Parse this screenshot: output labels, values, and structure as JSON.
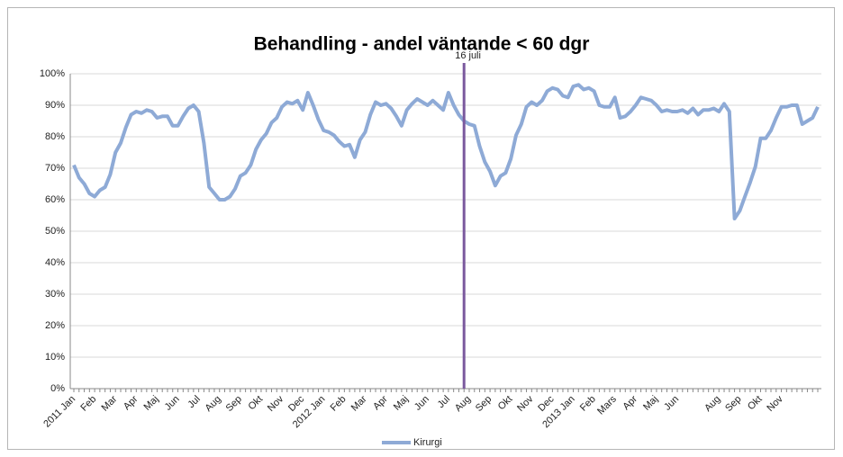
{
  "chart_data": {
    "type": "line",
    "title": "Behandling - andel väntande < 60 dgr",
    "categories": [
      "2011 Jan",
      null,
      null,
      null,
      "Feb",
      null,
      null,
      null,
      "Mar",
      null,
      null,
      null,
      "Apr",
      null,
      null,
      null,
      "Maj",
      null,
      null,
      null,
      "Jun",
      null,
      null,
      null,
      "Jul",
      null,
      null,
      null,
      "Aug",
      null,
      null,
      null,
      "Sep",
      null,
      null,
      null,
      "Okt",
      null,
      null,
      null,
      "Nov",
      null,
      null,
      null,
      "Dec",
      null,
      null,
      null,
      "2012 Jan",
      null,
      null,
      null,
      "Feb",
      null,
      null,
      null,
      "Mar",
      null,
      null,
      null,
      "Apr",
      null,
      null,
      null,
      "Maj",
      null,
      null,
      null,
      "Jun",
      null,
      null,
      null,
      "Jul",
      null,
      null,
      null,
      "Aug",
      null,
      null,
      null,
      "Sep",
      null,
      null,
      null,
      "Okt",
      null,
      null,
      null,
      "Nov",
      null,
      null,
      null,
      "Dec",
      null,
      null,
      null,
      "2013 Jan",
      null,
      null,
      null,
      "Feb",
      null,
      null,
      null,
      "Mars",
      null,
      null,
      null,
      "Apr",
      null,
      null,
      null,
      "Maj",
      null,
      null,
      null,
      "Jun",
      null,
      null,
      null,
      null,
      null,
      null,
      null,
      "Aug",
      null,
      null,
      null,
      "Sep",
      null,
      null,
      null,
      "Okt",
      null,
      null,
      null,
      "Nov",
      null,
      null,
      null,
      null,
      null,
      null,
      null
    ],
    "series": [
      {
        "name": "Kirurgi",
        "color": "#8eaad6",
        "values": [
          71,
          67,
          65,
          62,
          61,
          63,
          64,
          68,
          75,
          78,
          83,
          87,
          88,
          87.5,
          88.5,
          88,
          86,
          86.5,
          86.5,
          83.5,
          83.5,
          86.5,
          89,
          90,
          88,
          78,
          64,
          62,
          60,
          60,
          61,
          63.5,
          67.5,
          68.5,
          71,
          76,
          79,
          81,
          84.5,
          86,
          89.5,
          91,
          90.5,
          91.5,
          88.5,
          94,
          90,
          85.5,
          82,
          81.5,
          80.5,
          78.5,
          77,
          77.5,
          73.5,
          79,
          81.5,
          87,
          91,
          90,
          90.5,
          89,
          86.5,
          83.5,
          88.5,
          90.5,
          92,
          91,
          90,
          91.5,
          90,
          88.5,
          94,
          90,
          87,
          85,
          84,
          83.5,
          77,
          72,
          69,
          64.5,
          67.5,
          68.5,
          73,
          80.5,
          84,
          89.5,
          91,
          90,
          91.5,
          94.5,
          95.5,
          95,
          93,
          92.5,
          96,
          96.5,
          95,
          95.5,
          94.5,
          90,
          89.5,
          89.5,
          92.5,
          86,
          86.5,
          88,
          90,
          92.5,
          92,
          91.5,
          90,
          88,
          88.5,
          88,
          88,
          88.5,
          87.5,
          89,
          87,
          88.5,
          88.5,
          89,
          88,
          90.5,
          88,
          54,
          56.5,
          61,
          65.5,
          70.5,
          79.5,
          79.5,
          82,
          86,
          89.5,
          89.5,
          90,
          90,
          84,
          85,
          86,
          89.5
        ]
      }
    ],
    "ylim": [
      0,
      100
    ],
    "yticks": [
      {
        "value": 0,
        "label": "0%"
      },
      {
        "value": 10,
        "label": "10%"
      },
      {
        "value": 20,
        "label": "20%"
      },
      {
        "value": 30,
        "label": "30%"
      },
      {
        "value": 40,
        "label": "40%"
      },
      {
        "value": 50,
        "label": "50%"
      },
      {
        "value": 60,
        "label": "60%"
      },
      {
        "value": 70,
        "label": "70%"
      },
      {
        "value": 80,
        "label": "80%"
      },
      {
        "value": 90,
        "label": "90%"
      },
      {
        "value": 100,
        "label": "100%"
      }
    ],
    "grid": true,
    "annotation": {
      "label": "16 juli",
      "index": 75,
      "color": "#7b5a9e"
    },
    "legend": "bottom"
  }
}
